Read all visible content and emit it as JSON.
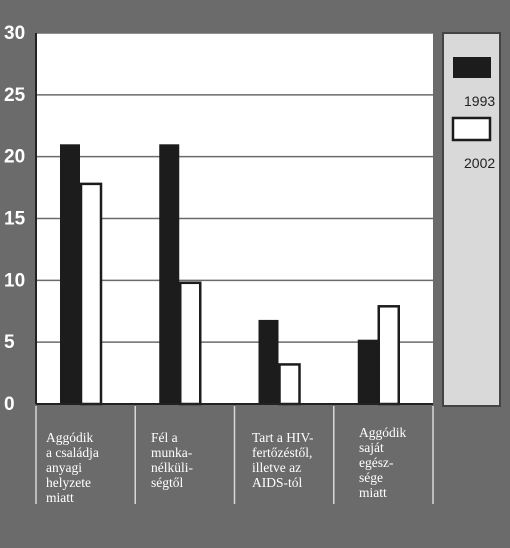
{
  "chart_data": {
    "type": "bar",
    "categories": [
      "Aggódik\na családja\nanyagi\nhelyzete\nmiatt",
      "Fél a\nmunka-\nnélküli-\nségtől",
      "Tart a HIV-\nfertőzéstől,\nilletve az\nAIDS-tól",
      "Aggódik\nsaját\negész-\nsége\nmiatt"
    ],
    "series": [
      {
        "name": "1993",
        "values": [
          21,
          21,
          6.8,
          5.2
        ]
      },
      {
        "name": "2002",
        "values": [
          17.8,
          9.8,
          3.2,
          7.9
        ]
      }
    ],
    "yticks": [
      "0",
      "5",
      "10",
      "15",
      "20",
      "25",
      "30"
    ],
    "ylim": [
      0,
      30
    ],
    "grid": true,
    "legend_position": "right",
    "colors": {
      "1993": "#1c1c1c",
      "2002": "#ffffff",
      "plot_bg": "#ffffff",
      "frame_bg": "#6b6b6b",
      "legend_bg": "#d9d9d9"
    }
  }
}
